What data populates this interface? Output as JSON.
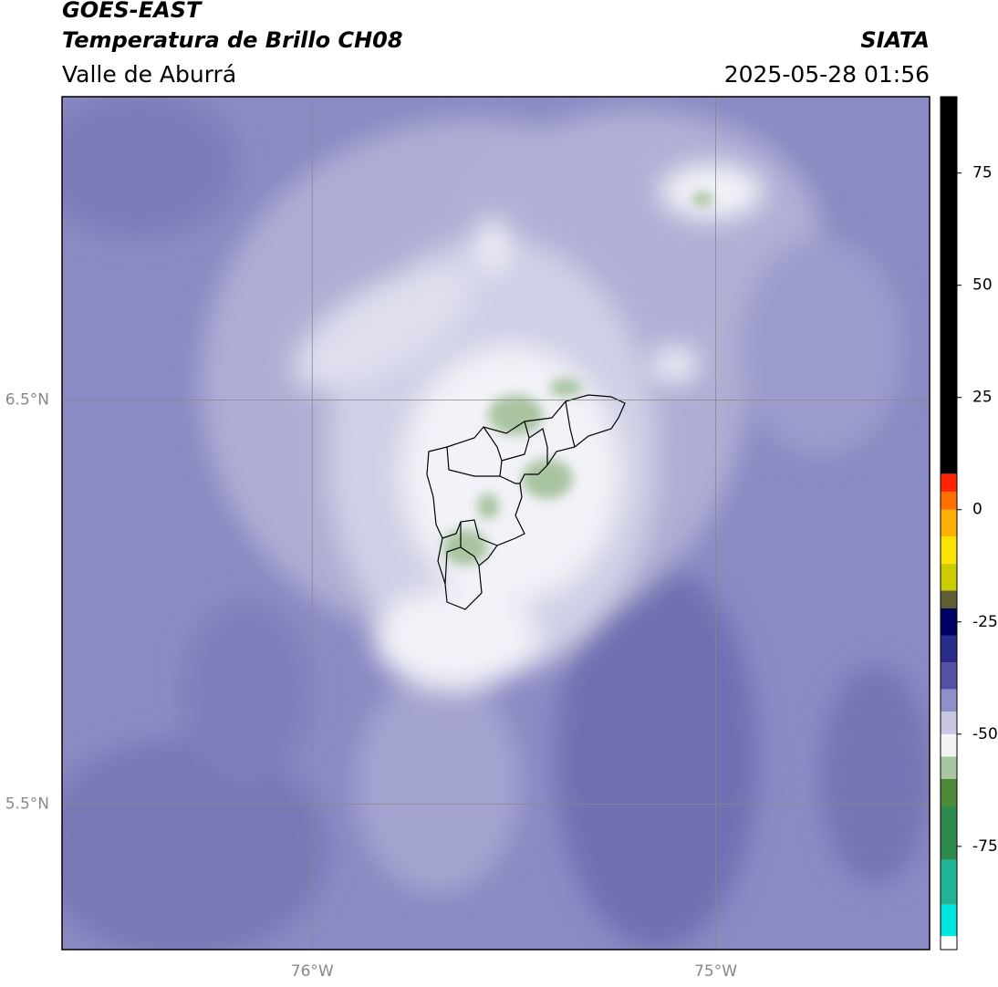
{
  "header": {
    "title": "GOES-EAST",
    "subtitle": "Temperatura de Brillo CH08",
    "region": "Valle de Aburrá",
    "brand": "SIATA",
    "datetime": "2025-05-28 01:56"
  },
  "chart_data": {
    "type": "map",
    "xlim": [
      -76.62,
      -74.47
    ],
    "ylim": [
      5.14,
      7.25
    ],
    "xticks": [
      {
        "value": -76,
        "label": "76°W"
      },
      {
        "value": -75,
        "label": "75°W"
      }
    ],
    "yticks": [
      {
        "value": 6.5,
        "label": "6.5°N"
      },
      {
        "value": 5.5,
        "label": "5.5°N"
      }
    ],
    "grid": true,
    "colorbar": {
      "lim": [
        -98,
        92
      ],
      "ticks": [
        75,
        50,
        25,
        0,
        -25,
        -50,
        -75
      ],
      "segments": [
        {
          "from": -98,
          "to": -95,
          "color": "#ffffff"
        },
        {
          "from": -95,
          "to": -88,
          "color": "#00e5dc"
        },
        {
          "from": -88,
          "to": -78,
          "color": "#22b594"
        },
        {
          "from": -78,
          "to": -66,
          "color": "#2e8b4e"
        },
        {
          "from": -66,
          "to": -60,
          "color": "#4f8a3c"
        },
        {
          "from": -60,
          "to": -55,
          "color": "#a9c6a2"
        },
        {
          "from": -55,
          "to": -50,
          "color": "#f2f2f4"
        },
        {
          "from": -50,
          "to": -45,
          "color": "#c8c8e0"
        },
        {
          "from": -45,
          "to": -40,
          "color": "#9090c8"
        },
        {
          "from": -40,
          "to": -34,
          "color": "#5252a4"
        },
        {
          "from": -34,
          "to": -28,
          "color": "#2a2a8a"
        },
        {
          "from": -28,
          "to": -22,
          "color": "#000062"
        },
        {
          "from": -22,
          "to": -18,
          "color": "#5e5e32"
        },
        {
          "from": -18,
          "to": -12,
          "color": "#cccc00"
        },
        {
          "from": -12,
          "to": -6,
          "color": "#f8e400"
        },
        {
          "from": -6,
          "to": 0,
          "color": "#ffb000"
        },
        {
          "from": 0,
          "to": 4,
          "color": "#ff7000"
        },
        {
          "from": 4,
          "to": 8,
          "color": "#ff2400"
        },
        {
          "from": 8,
          "to": 92,
          "color": "#000000"
        }
      ]
    }
  }
}
